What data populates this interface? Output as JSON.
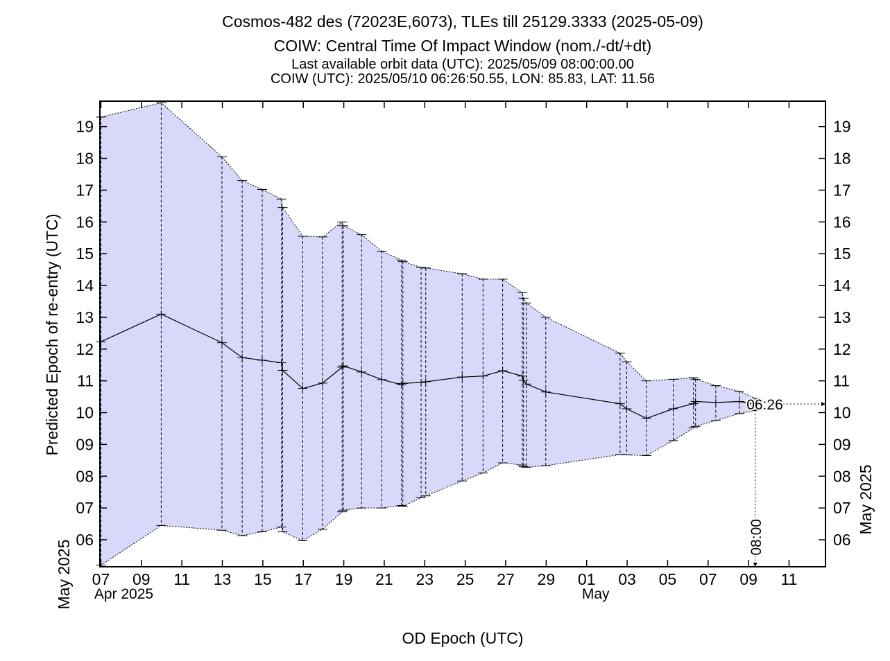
{
  "chart_data": {
    "type": "line",
    "title": "Cosmos-482 des (72023E,6073), TLEs till 25129.3333 (2025-05-09)",
    "subtitle": "COIW: Central Time Of Impact Window (nom./-dt/+dt)",
    "info_lines": [
      "Last available orbit data (UTC): 2025/05/09 08:00:00.00",
      "COIW (UTC): 2025/05/10 06:26:50.55, LON: 85.83, LAT: 11.56"
    ],
    "xlabel": "OD Epoch (UTC)",
    "ylabel": "Predicted Epoch of re-entry (UTC)",
    "y2label": "May 2025",
    "x_units": "days since 2025-04-07 00:00 UTC",
    "y_units": "days of May 2025",
    "xlim": [
      -0.05,
      35.8
    ],
    "ylim": [
      5.15,
      19.8
    ],
    "x_ticks": [
      {
        "x": 0,
        "label": "07"
      },
      {
        "x": 2,
        "label": "09"
      },
      {
        "x": 4,
        "label": "11"
      },
      {
        "x": 6,
        "label": "13"
      },
      {
        "x": 8,
        "label": "15"
      },
      {
        "x": 10,
        "label": "17"
      },
      {
        "x": 12,
        "label": "19"
      },
      {
        "x": 14,
        "label": "21"
      },
      {
        "x": 16,
        "label": "23"
      },
      {
        "x": 18,
        "label": "25"
      },
      {
        "x": 20,
        "label": "27"
      },
      {
        "x": 22,
        "label": "29"
      },
      {
        "x": 24,
        "label": "01"
      },
      {
        "x": 26,
        "label": "03"
      },
      {
        "x": 28,
        "label": "05"
      },
      {
        "x": 30,
        "label": "07"
      },
      {
        "x": 32,
        "label": "09"
      },
      {
        "x": 34,
        "label": "11"
      }
    ],
    "x_month_labels": [
      {
        "x": 0.0,
        "label": "Apr 2025"
      },
      {
        "x": 24.0,
        "label": "May"
      }
    ],
    "x_year_label": "May 2025",
    "y_ticks": [
      {
        "y": 6,
        "label": "06"
      },
      {
        "y": 7,
        "label": "07"
      },
      {
        "y": 8,
        "label": "08"
      },
      {
        "y": 9,
        "label": "09"
      },
      {
        "y": 10,
        "label": "10"
      },
      {
        "y": 11,
        "label": "11"
      },
      {
        "y": 12,
        "label": "12"
      },
      {
        "y": 13,
        "label": "13"
      },
      {
        "y": 14,
        "label": "14"
      },
      {
        "y": 15,
        "label": "15"
      },
      {
        "y": 16,
        "label": "16"
      },
      {
        "y": 17,
        "label": "17"
      },
      {
        "y": 18,
        "label": "18"
      },
      {
        "y": 19,
        "label": "19"
      }
    ],
    "series": [
      {
        "color": "#000000",
        "band_color": "#d8d8fa",
        "points": [
          {
            "x": 0.0,
            "nom": 12.23,
            "lo": 5.2,
            "hi": 19.3
          },
          {
            "x": 2.98,
            "nom": 13.1,
            "lo": 6.45,
            "hi": 19.75
          },
          {
            "x": 5.98,
            "nom": 12.2,
            "lo": 6.3,
            "hi": 18.05
          },
          {
            "x": 6.98,
            "nom": 11.73,
            "lo": 6.13,
            "hi": 17.3
          },
          {
            "x": 7.97,
            "nom": 11.65,
            "lo": 6.25,
            "hi": 17.02
          },
          {
            "x": 8.92,
            "nom": 11.57,
            "lo": 6.4,
            "hi": 16.72
          },
          {
            "x": 8.98,
            "nom": 11.33,
            "lo": 6.25,
            "hi": 16.45
          },
          {
            "x": 9.97,
            "nom": 10.76,
            "lo": 5.97,
            "hi": 15.55
          },
          {
            "x": 10.95,
            "nom": 10.93,
            "lo": 6.33,
            "hi": 15.53
          },
          {
            "x": 11.92,
            "nom": 11.43,
            "lo": 6.88,
            "hi": 16.0
          },
          {
            "x": 11.98,
            "nom": 11.47,
            "lo": 6.93,
            "hi": 15.88
          },
          {
            "x": 12.88,
            "nom": 11.28,
            "lo": 7.0,
            "hi": 15.6
          },
          {
            "x": 13.88,
            "nom": 11.04,
            "lo": 7.0,
            "hi": 15.08
          },
          {
            "x": 14.85,
            "nom": 10.88,
            "lo": 7.08,
            "hi": 14.8
          },
          {
            "x": 14.92,
            "nom": 10.92,
            "lo": 7.05,
            "hi": 14.75
          },
          {
            "x": 15.82,
            "nom": 10.95,
            "lo": 7.32,
            "hi": 14.57
          },
          {
            "x": 16.05,
            "nom": 10.97,
            "lo": 7.38,
            "hi": 14.55
          },
          {
            "x": 17.85,
            "nom": 11.12,
            "lo": 7.85,
            "hi": 14.37
          },
          {
            "x": 18.88,
            "nom": 11.15,
            "lo": 8.1,
            "hi": 14.2
          },
          {
            "x": 19.85,
            "nom": 11.32,
            "lo": 8.42,
            "hi": 14.2
          },
          {
            "x": 20.82,
            "nom": 11.15,
            "lo": 8.35,
            "hi": 13.78
          },
          {
            "x": 20.88,
            "nom": 11.02,
            "lo": 8.3,
            "hi": 13.6
          },
          {
            "x": 21.02,
            "nom": 10.9,
            "lo": 8.28,
            "hi": 13.45
          },
          {
            "x": 21.98,
            "nom": 10.65,
            "lo": 8.33,
            "hi": 13.0
          },
          {
            "x": 25.65,
            "nom": 10.28,
            "lo": 8.68,
            "hi": 11.87
          },
          {
            "x": 25.98,
            "nom": 10.12,
            "lo": 8.67,
            "hi": 11.6
          },
          {
            "x": 26.95,
            "nom": 9.82,
            "lo": 8.65,
            "hi": 11.0
          },
          {
            "x": 28.28,
            "nom": 10.12,
            "lo": 9.12,
            "hi": 11.05
          },
          {
            "x": 29.28,
            "nom": 10.28,
            "lo": 9.52,
            "hi": 11.1
          },
          {
            "x": 29.38,
            "nom": 10.35,
            "lo": 9.57,
            "hi": 11.05
          },
          {
            "x": 30.38,
            "nom": 10.32,
            "lo": 9.75,
            "hi": 10.85
          },
          {
            "x": 31.55,
            "nom": 10.35,
            "lo": 9.97,
            "hi": 10.67
          },
          {
            "x": 32.33,
            "nom": 10.27,
            "lo": 10.07,
            "hi": 10.45
          }
        ]
      }
    ],
    "annotations": [
      {
        "text": "06:26",
        "y": 10.27,
        "marker": "right-edge-arrow"
      },
      {
        "text": "08:00",
        "x": 32.33,
        "marker": "bottom-edge-arrow"
      }
    ],
    "grid": false,
    "legend": "none"
  }
}
